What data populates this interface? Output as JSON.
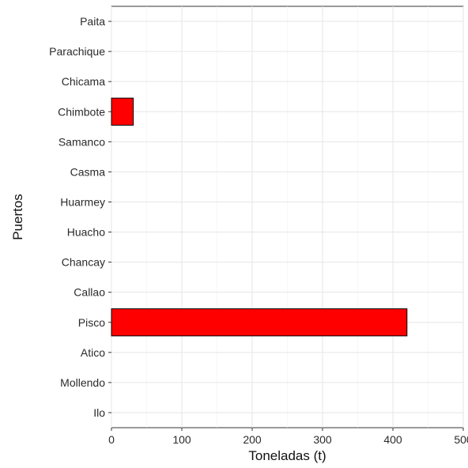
{
  "chart_data": {
    "type": "bar",
    "orientation": "horizontal",
    "title": "",
    "xlabel": "Toneladas (t)",
    "ylabel": "Puertos",
    "categories": [
      "Paita",
      "Parachique",
      "Chicama",
      "Chimbote",
      "Samanco",
      "Casma",
      "Huarmey",
      "Huacho",
      "Chancay",
      "Callao",
      "Pisco",
      "Atico",
      "Mollendo",
      "Ilo"
    ],
    "values": [
      0,
      0,
      0,
      31,
      0,
      0,
      0,
      0,
      0,
      0,
      420,
      0,
      0,
      0
    ],
    "xlim": [
      0,
      500
    ],
    "xticks": [
      0,
      100,
      200,
      300,
      400,
      500
    ],
    "bar_color": "#ff0000",
    "bar_stroke": "#000000",
    "grid": true,
    "legend": "none"
  }
}
